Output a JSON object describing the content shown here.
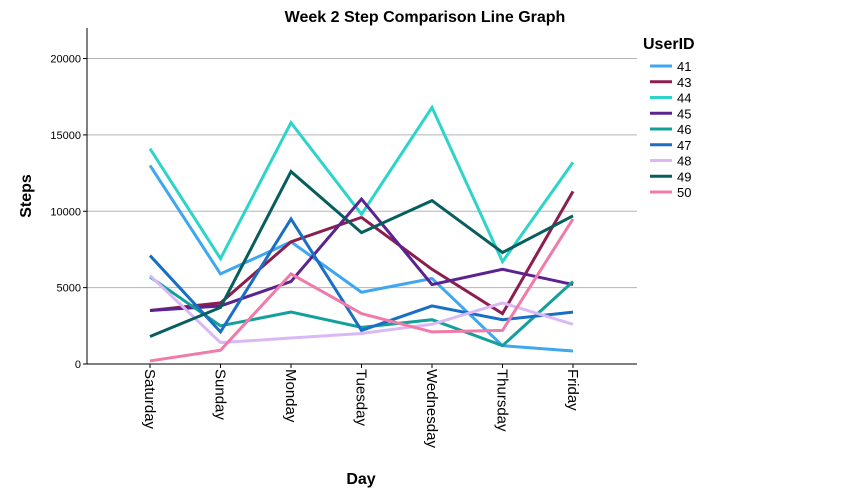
{
  "chart_data": {
    "type": "line",
    "title": "Week 2 Step Comparison Line Graph",
    "xlabel": "Day",
    "ylabel": "Steps",
    "categories": [
      "Saturday",
      "Sunday",
      "Monday",
      "Tuesday",
      "Wednesday",
      "Thursday",
      "Friday"
    ],
    "ylim": [
      0,
      22000
    ],
    "yticks": [
      0,
      5000,
      10000,
      15000,
      20000
    ],
    "grid": "horizontal",
    "legend": {
      "title": "UserID",
      "placement": "right"
    },
    "series": [
      {
        "name": "41",
        "color": "#3fa7f0",
        "values": [
          13000,
          5900,
          8000,
          4700,
          5600,
          1200,
          850
        ]
      },
      {
        "name": "43",
        "color": "#8c1e4f",
        "values": [
          3500,
          4000,
          8000,
          9600,
          6200,
          3300,
          11300
        ]
      },
      {
        "name": "44",
        "color": "#2dd4c9",
        "values": [
          14100,
          6900,
          15800,
          9800,
          16800,
          6700,
          13200
        ]
      },
      {
        "name": "45",
        "color": "#5b2390",
        "values": [
          3500,
          3800,
          5400,
          10800,
          5200,
          6200,
          5200
        ]
      },
      {
        "name": "46",
        "color": "#14a09a",
        "values": [
          5700,
          2500,
          3400,
          2400,
          2900,
          1200,
          5400
        ]
      },
      {
        "name": "47",
        "color": "#1a6fc4",
        "values": [
          7100,
          2100,
          9500,
          2200,
          3800,
          2900,
          3400
        ]
      },
      {
        "name": "48",
        "color": "#d9b8f5",
        "values": [
          5800,
          1400,
          1700,
          2000,
          2600,
          4000,
          2600
        ]
      },
      {
        "name": "49",
        "color": "#075e5e",
        "values": [
          1800,
          3700,
          12600,
          8600,
          10700,
          7300,
          9700
        ]
      },
      {
        "name": "50",
        "color": "#f07aa8",
        "values": [
          200,
          900,
          5900,
          3300,
          2100,
          2200,
          9500
        ]
      }
    ]
  }
}
